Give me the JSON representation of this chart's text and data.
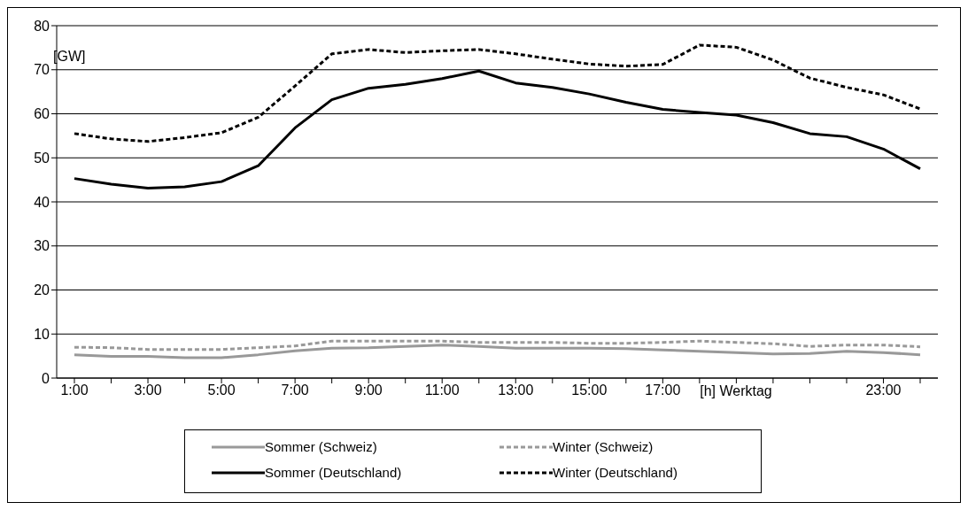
{
  "chart_data": {
    "type": "line",
    "ylabel": "[GW]",
    "xlabel": "[h] Werktag",
    "categories": [
      "1:00",
      null,
      "3:00",
      null,
      "5:00",
      null,
      "7:00",
      null,
      "9:00",
      null,
      "11:00",
      null,
      "13:00",
      null,
      "15:00",
      null,
      "17:00",
      null,
      null,
      null,
      null,
      null,
      "23:00",
      null
    ],
    "series": [
      {
        "name": "Sommer (Schweiz)",
        "color": "#999999",
        "line_style": "solid",
        "values": [
          5.3,
          4.9,
          4.9,
          4.6,
          4.6,
          5.3,
          6.2,
          6.8,
          6.9,
          7.2,
          7.5,
          7.2,
          6.8,
          6.8,
          6.8,
          6.7,
          6.4,
          6.1,
          5.8,
          5.5,
          5.6,
          6.1,
          5.8,
          5.3
        ]
      },
      {
        "name": "Winter (Schweiz)",
        "color": "#999999",
        "line_style": "dashed",
        "values": [
          7,
          6.9,
          6.5,
          6.5,
          6.5,
          6.9,
          7.3,
          8.4,
          8.4,
          8.4,
          8.4,
          8.1,
          8.1,
          8.1,
          7.9,
          7.9,
          8.1,
          8.4,
          8.1,
          7.8,
          7.2,
          7.5,
          7.5,
          7.1
        ]
      },
      {
        "name": "Sommer (Deutschland)",
        "color": "#000000",
        "line_style": "solid",
        "values": [
          45.3,
          44,
          43.1,
          43.4,
          44.6,
          48.2,
          56.8,
          63.2,
          65.8,
          66.7,
          68,
          69.7,
          67,
          66,
          64.5,
          62.6,
          61,
          60.3,
          59.7,
          58,
          55.5,
          54.8,
          52,
          47.5
        ]
      },
      {
        "name": "Winter (Deutschland)",
        "color": "#000000",
        "line_style": "dashed",
        "values": [
          55.5,
          54.3,
          53.7,
          54.6,
          55.7,
          59.2,
          66.3,
          73.6,
          74.6,
          73.9,
          74.3,
          74.6,
          73.6,
          72.4,
          71.3,
          70.8,
          71.2,
          75.6,
          75.1,
          72.2,
          68.1,
          66,
          64.3,
          61.1
        ]
      }
    ],
    "ylim": [
      0,
      80
    ],
    "yticks": [
      0,
      10,
      20,
      30,
      40,
      50,
      60,
      70,
      80
    ],
    "grid": "y",
    "legend": "bottom",
    "marker": "none"
  }
}
